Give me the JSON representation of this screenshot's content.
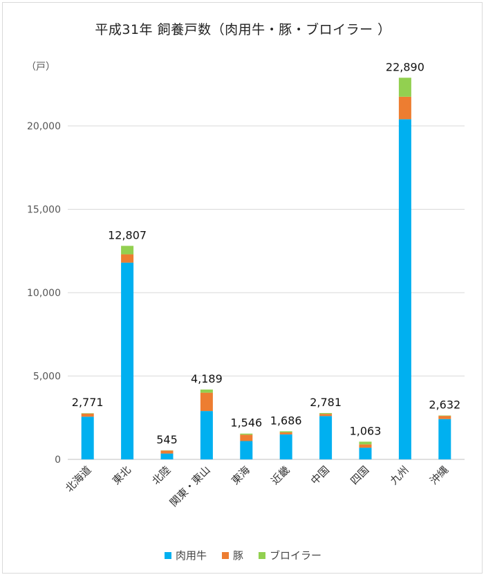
{
  "title": "平成31年 飼養戸数（肉用牛・豚・ブロイラー ）",
  "unit_label": "（戸）",
  "chart_data": {
    "type": "bar",
    "stacked": true,
    "categories": [
      "北海道",
      "東北",
      "北陸",
      "関東・東山",
      "東海",
      "近畿",
      "中国",
      "四国",
      "九州",
      "沖縄"
    ],
    "series": [
      {
        "name": "肉用牛",
        "color": "#00b0f0",
        "values": [
          2560,
          11800,
          350,
          2900,
          1100,
          1500,
          2600,
          700,
          20400,
          2420
        ]
      },
      {
        "name": "豚",
        "color": "#ed7d31",
        "values": [
          190,
          500,
          180,
          1100,
          380,
          120,
          130,
          200,
          1350,
          190
        ]
      },
      {
        "name": "ブロイラー",
        "color": "#92d050",
        "values": [
          21,
          507,
          15,
          189,
          66,
          66,
          51,
          163,
          1140,
          22
        ]
      }
    ],
    "totals": [
      "2,771",
      "12,807",
      "545",
      "4,189",
      "1,546",
      "1,686",
      "2,781",
      "1,063",
      "22,890",
      "2,632"
    ],
    "y_ticks": [
      "0",
      "5,000",
      "10,000",
      "15,000",
      "20,000"
    ],
    "y_tick_values": [
      0,
      5000,
      10000,
      15000,
      20000
    ],
    "ylim": [
      0,
      23000
    ],
    "grid": true,
    "legend_position": "bottom"
  }
}
